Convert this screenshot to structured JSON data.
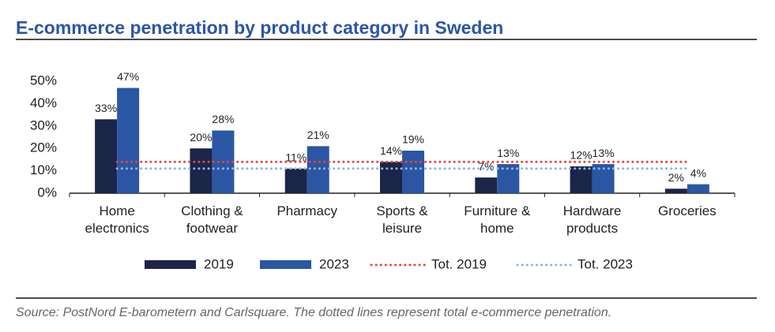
{
  "chart_data": {
    "type": "bar",
    "title": "E-commerce penetration by product category in Sweden",
    "categories": [
      "Home electronics",
      "Clothing & footwear",
      "Pharmacy",
      "Sports & leisure",
      "Furniture & home",
      "Hardware products",
      "Groceries"
    ],
    "series": [
      {
        "name": "2019",
        "color": "#1b2549",
        "values": [
          33,
          20,
          11,
          14,
          7,
          12,
          2
        ],
        "value_labels": [
          "33%",
          "20%",
          "11%",
          "14%",
          "7%",
          "12%",
          "2%"
        ]
      },
      {
        "name": "2023",
        "color": "#2b56a3",
        "values": [
          47,
          28,
          21,
          19,
          13,
          13,
          4
        ],
        "value_labels": [
          "47%",
          "28%",
          "21%",
          "19%",
          "13%",
          "13%",
          "4%"
        ]
      }
    ],
    "reference_lines": [
      {
        "name": "Tot. 2019",
        "color": "#e8463f",
        "value": 14
      },
      {
        "name": "Tot. 2023",
        "color": "#8fb3df",
        "value": 11
      }
    ],
    "ylim": [
      0,
      50
    ],
    "yticks": [
      {
        "value": 0,
        "label": "0%"
      },
      {
        "value": 10,
        "label": "10%"
      },
      {
        "value": 20,
        "label": "20%"
      },
      {
        "value": 30,
        "label": "30%"
      },
      {
        "value": 40,
        "label": "40%"
      },
      {
        "value": 50,
        "label": "50%"
      }
    ],
    "source": "Source: PostNord E-barometern and Carlsquare. The dotted lines represent total e-commerce penetration."
  }
}
